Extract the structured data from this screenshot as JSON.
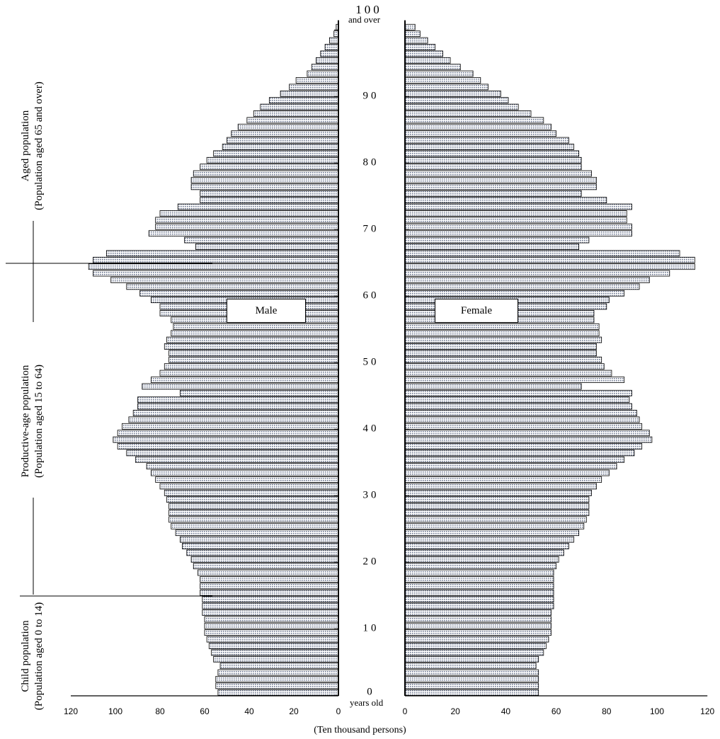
{
  "chart_data": {
    "type": "bar",
    "orientation": "horizontal",
    "xlabel": "(Ten thousand persons)",
    "age_axis_unit": "years old",
    "age_top_suffix": "and over",
    "age_ticks": [
      "0",
      "10",
      "20",
      "30",
      "40",
      "50",
      "60",
      "70",
      "80",
      "90",
      "100"
    ],
    "x_ticks": [
      "0",
      "20",
      "40",
      "60",
      "80",
      "100",
      "120"
    ],
    "xlim": [
      0,
      120
    ],
    "group_labels": [
      {
        "line1": "Aged population",
        "line2": "(Population aged 65 and over)"
      },
      {
        "line1": "Productive-age population",
        "line2": "(Population aged 15 to 64)"
      },
      {
        "line1": "Child population",
        "line2": "(Population aged 0 to 14)"
      }
    ],
    "ages": [
      0,
      1,
      2,
      3,
      4,
      5,
      6,
      7,
      8,
      9,
      10,
      11,
      12,
      13,
      14,
      15,
      16,
      17,
      18,
      19,
      20,
      21,
      22,
      23,
      24,
      25,
      26,
      27,
      28,
      29,
      30,
      31,
      32,
      33,
      34,
      35,
      36,
      37,
      38,
      39,
      40,
      41,
      42,
      43,
      44,
      45,
      46,
      47,
      48,
      49,
      50,
      51,
      52,
      53,
      54,
      55,
      56,
      57,
      58,
      59,
      60,
      61,
      62,
      63,
      64,
      65,
      66,
      67,
      68,
      69,
      70,
      71,
      72,
      73,
      74,
      75,
      76,
      77,
      78,
      79,
      80,
      81,
      82,
      83,
      84,
      85,
      86,
      87,
      88,
      89,
      90,
      91,
      92,
      93,
      94,
      95,
      96,
      97,
      98,
      99,
      100
    ],
    "series": [
      {
        "name": "Male",
        "color": "#c7ccd9",
        "values": [
          54,
          55,
          55,
          54,
          53,
          56,
          57,
          58,
          59,
          60,
          60,
          60,
          61,
          61,
          61,
          62,
          62,
          62,
          63,
          65,
          66,
          68,
          70,
          71,
          73,
          75,
          76,
          76,
          76,
          77,
          78,
          80,
          82,
          84,
          86,
          91,
          95,
          99,
          101,
          99,
          97,
          94,
          92,
          90,
          90,
          71,
          88,
          84,
          80,
          78,
          76,
          76,
          78,
          77,
          75,
          74,
          75,
          80,
          80,
          84,
          89,
          95,
          102,
          110,
          112,
          110,
          104,
          64,
          69,
          85,
          82,
          82,
          80,
          72,
          62,
          62,
          66,
          66,
          65,
          62,
          59,
          56,
          52,
          50,
          48,
          45,
          41,
          38,
          35,
          31,
          26,
          22,
          19,
          14,
          12,
          10,
          8,
          6,
          4,
          2,
          1
        ]
      },
      {
        "name": "Female",
        "color": "#c7ccd9",
        "values": [
          53,
          53,
          53,
          53,
          52,
          53,
          55,
          56,
          57,
          58,
          58,
          58,
          58,
          59,
          59,
          59,
          59,
          59,
          59,
          60,
          61,
          63,
          65,
          67,
          69,
          71,
          72,
          73,
          73,
          73,
          74,
          76,
          78,
          81,
          84,
          87,
          91,
          94,
          98,
          97,
          94,
          93,
          92,
          90,
          89,
          90,
          70,
          87,
          82,
          79,
          78,
          76,
          76,
          78,
          77,
          77,
          75,
          75,
          80,
          81,
          87,
          93,
          97,
          105,
          115,
          115,
          109,
          69,
          73,
          90,
          90,
          88,
          88,
          90,
          80,
          70,
          76,
          76,
          74,
          70,
          70,
          69,
          67,
          65,
          60,
          58,
          55,
          50,
          45,
          41,
          38,
          33,
          30,
          27,
          22,
          18,
          15,
          12,
          9,
          6,
          4
        ]
      }
    ]
  }
}
